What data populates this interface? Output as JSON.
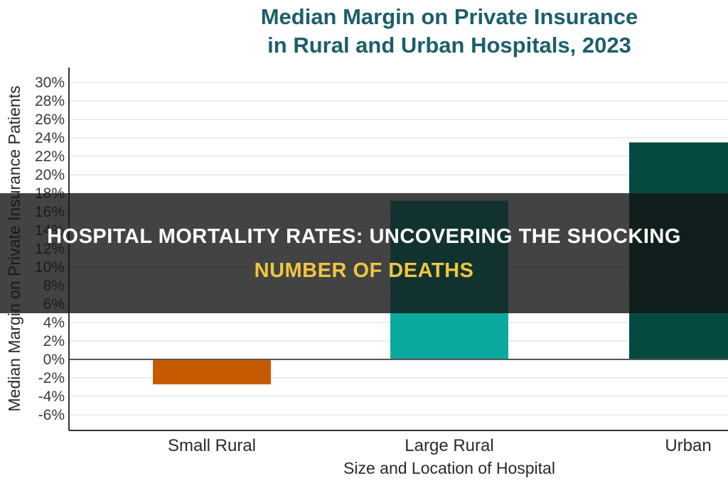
{
  "chart_data": {
    "type": "bar",
    "title_lines": [
      "Median Margin on Private Insurance",
      "in Rural and Urban Hospitals, 2023"
    ],
    "categories": [
      "Small Rural",
      "Large Rural",
      "Urban"
    ],
    "values": [
      -2.7,
      17.2,
      23.5
    ],
    "colors": [
      "#c55a00",
      "#0aaaa0",
      "#044a40"
    ],
    "xlabel": "Size and Location of Hospital",
    "ylabel": "Median Margin on Private Insurance Patients",
    "ylim": [
      -8,
      32
    ],
    "yticks": [
      30,
      28,
      26,
      24,
      22,
      20,
      18,
      16,
      14,
      12,
      10,
      8,
      6,
      4,
      2,
      0,
      -2,
      -4,
      -6
    ],
    "tick_suffix": "%",
    "grid": true
  },
  "overlay": {
    "headline_line1": "HOSPITAL MORTALITY RATES: UNCOVERING THE SHOCKING",
    "headline_line2": "NUMBER OF DEATHS",
    "banner_color": "#141414",
    "headline_color": "#ffffff",
    "highlight_color": "#f0c541"
  }
}
